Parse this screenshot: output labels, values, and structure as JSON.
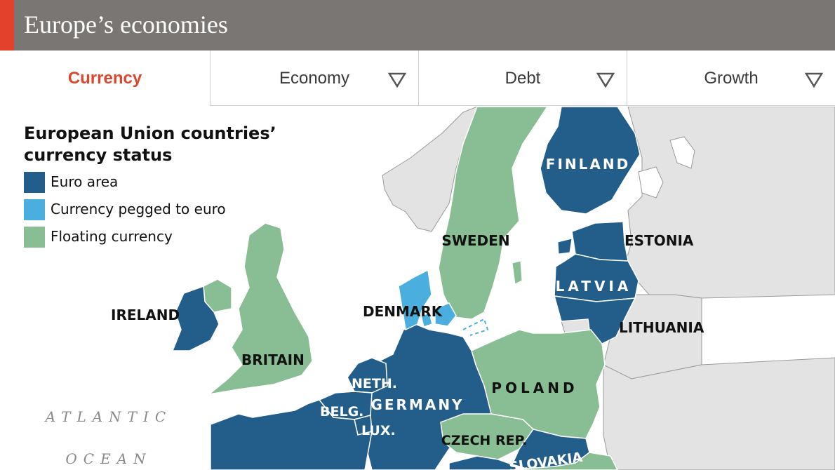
{
  "header": {
    "title": "Europe’s economies"
  },
  "tabs": [
    {
      "label": "Currency",
      "active": true
    },
    {
      "label": "Economy",
      "active": false,
      "icon": "triangle-down-icon"
    },
    {
      "label": "Debt",
      "active": false,
      "icon": "triangle-down-icon"
    },
    {
      "label": "Growth",
      "active": false,
      "icon": "triangle-down-icon"
    }
  ],
  "legend": {
    "title_line1": "European Union countries’",
    "title_line2": "currency status",
    "items": [
      {
        "label": "Euro area",
        "color": "#235d89"
      },
      {
        "label": "Currency pegged to euro",
        "color": "#4aaedf"
      },
      {
        "label": "Floating currency",
        "color": "#89bd93"
      }
    ]
  },
  "colors": {
    "euro": "#235d89",
    "pegged": "#4aaedf",
    "floating": "#89bd93",
    "non_eu": "#e3e3e3",
    "sea": "#ffffff",
    "accent": "#e3412b",
    "header_bg": "#797673",
    "active_tab": "#d9472c"
  },
  "map": {
    "labels": {
      "ireland": "IRELAND",
      "britain": "BRITAIN",
      "denmark": "DENMARK",
      "sweden": "SWEDEN",
      "finland": "FINLAND",
      "estonia": "ESTONIA",
      "latvia": "LATVIA",
      "lithuania": "LITHUANIA",
      "poland": "POLAND",
      "germany": "GERMANY",
      "netherlands": "NETH.",
      "belgium": "BELG.",
      "luxembourg": "LUX.",
      "czech": "CZECH REP.",
      "slovakia": "SLOVAKIA"
    },
    "sea": {
      "line1": "ATLANTIC",
      "line2": "OCEAN"
    },
    "regions": [
      {
        "id": "ireland",
        "status": "euro"
      },
      {
        "id": "northern-ireland",
        "status": "floating"
      },
      {
        "id": "britain",
        "status": "floating"
      },
      {
        "id": "denmark",
        "status": "pegged"
      },
      {
        "id": "sweden",
        "status": "floating"
      },
      {
        "id": "finland",
        "status": "euro"
      },
      {
        "id": "estonia",
        "status": "euro"
      },
      {
        "id": "latvia",
        "status": "euro"
      },
      {
        "id": "lithuania",
        "status": "euro"
      },
      {
        "id": "poland",
        "status": "floating"
      },
      {
        "id": "germany",
        "status": "euro"
      },
      {
        "id": "netherlands",
        "status": "euro"
      },
      {
        "id": "belgium",
        "status": "euro"
      },
      {
        "id": "luxembourg",
        "status": "euro"
      },
      {
        "id": "france",
        "status": "euro"
      },
      {
        "id": "czech",
        "status": "floating"
      },
      {
        "id": "slovakia",
        "status": "euro"
      },
      {
        "id": "austria",
        "status": "euro"
      },
      {
        "id": "hungary",
        "status": "floating"
      },
      {
        "id": "norway",
        "status": "non-eu"
      },
      {
        "id": "russia",
        "status": "non-eu"
      },
      {
        "id": "belarus",
        "status": "non-eu"
      },
      {
        "id": "ukraine",
        "status": "non-eu"
      }
    ]
  }
}
